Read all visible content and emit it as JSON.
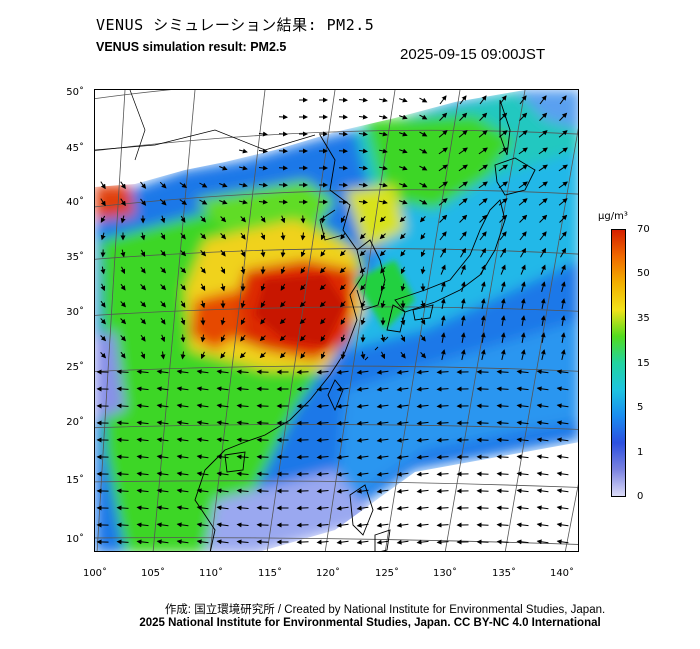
{
  "header": {
    "title_jp": "VENUS シミュレーション結果: PM2.5",
    "title_en": "VENUS simulation result: PM2.5",
    "timestamp": "2025-09-15 09:00JST"
  },
  "map": {
    "lat_labels": [
      "50˚",
      "45˚",
      "40˚",
      "35˚",
      "30˚",
      "25˚",
      "20˚",
      "15˚",
      "10˚"
    ],
    "lon_labels": [
      "100˚",
      "105˚",
      "110˚",
      "115˚",
      "120˚",
      "125˚",
      "130˚",
      "135˚",
      "140˚"
    ],
    "lat_range": [
      9,
      51
    ],
    "lon_range": [
      100,
      141
    ],
    "layers": [
      "coastlines",
      "graticule",
      "pm2.5 concentration field",
      "wind vectors"
    ]
  },
  "legend": {
    "unit_label": "μg/m³",
    "tick_labels": [
      "70",
      "50",
      "35",
      "15",
      "5",
      "1",
      "0"
    ],
    "colors": [
      "#d42000",
      "#f06a00",
      "#f2b000",
      "#f2e21a",
      "#52dc1e",
      "#22d4a0",
      "#1ec4e0",
      "#1a8cf0",
      "#2c50e0",
      "#7a82e0",
      "#dcdcf8"
    ]
  },
  "footer": {
    "credit_line": "作成: 国立環境研究所 / Created by National Institute for Environmental Studies, Japan.",
    "copyright_line": "2025 National Institute for Environmental Studies, Japan. CC BY-NC 4.0 International"
  }
}
